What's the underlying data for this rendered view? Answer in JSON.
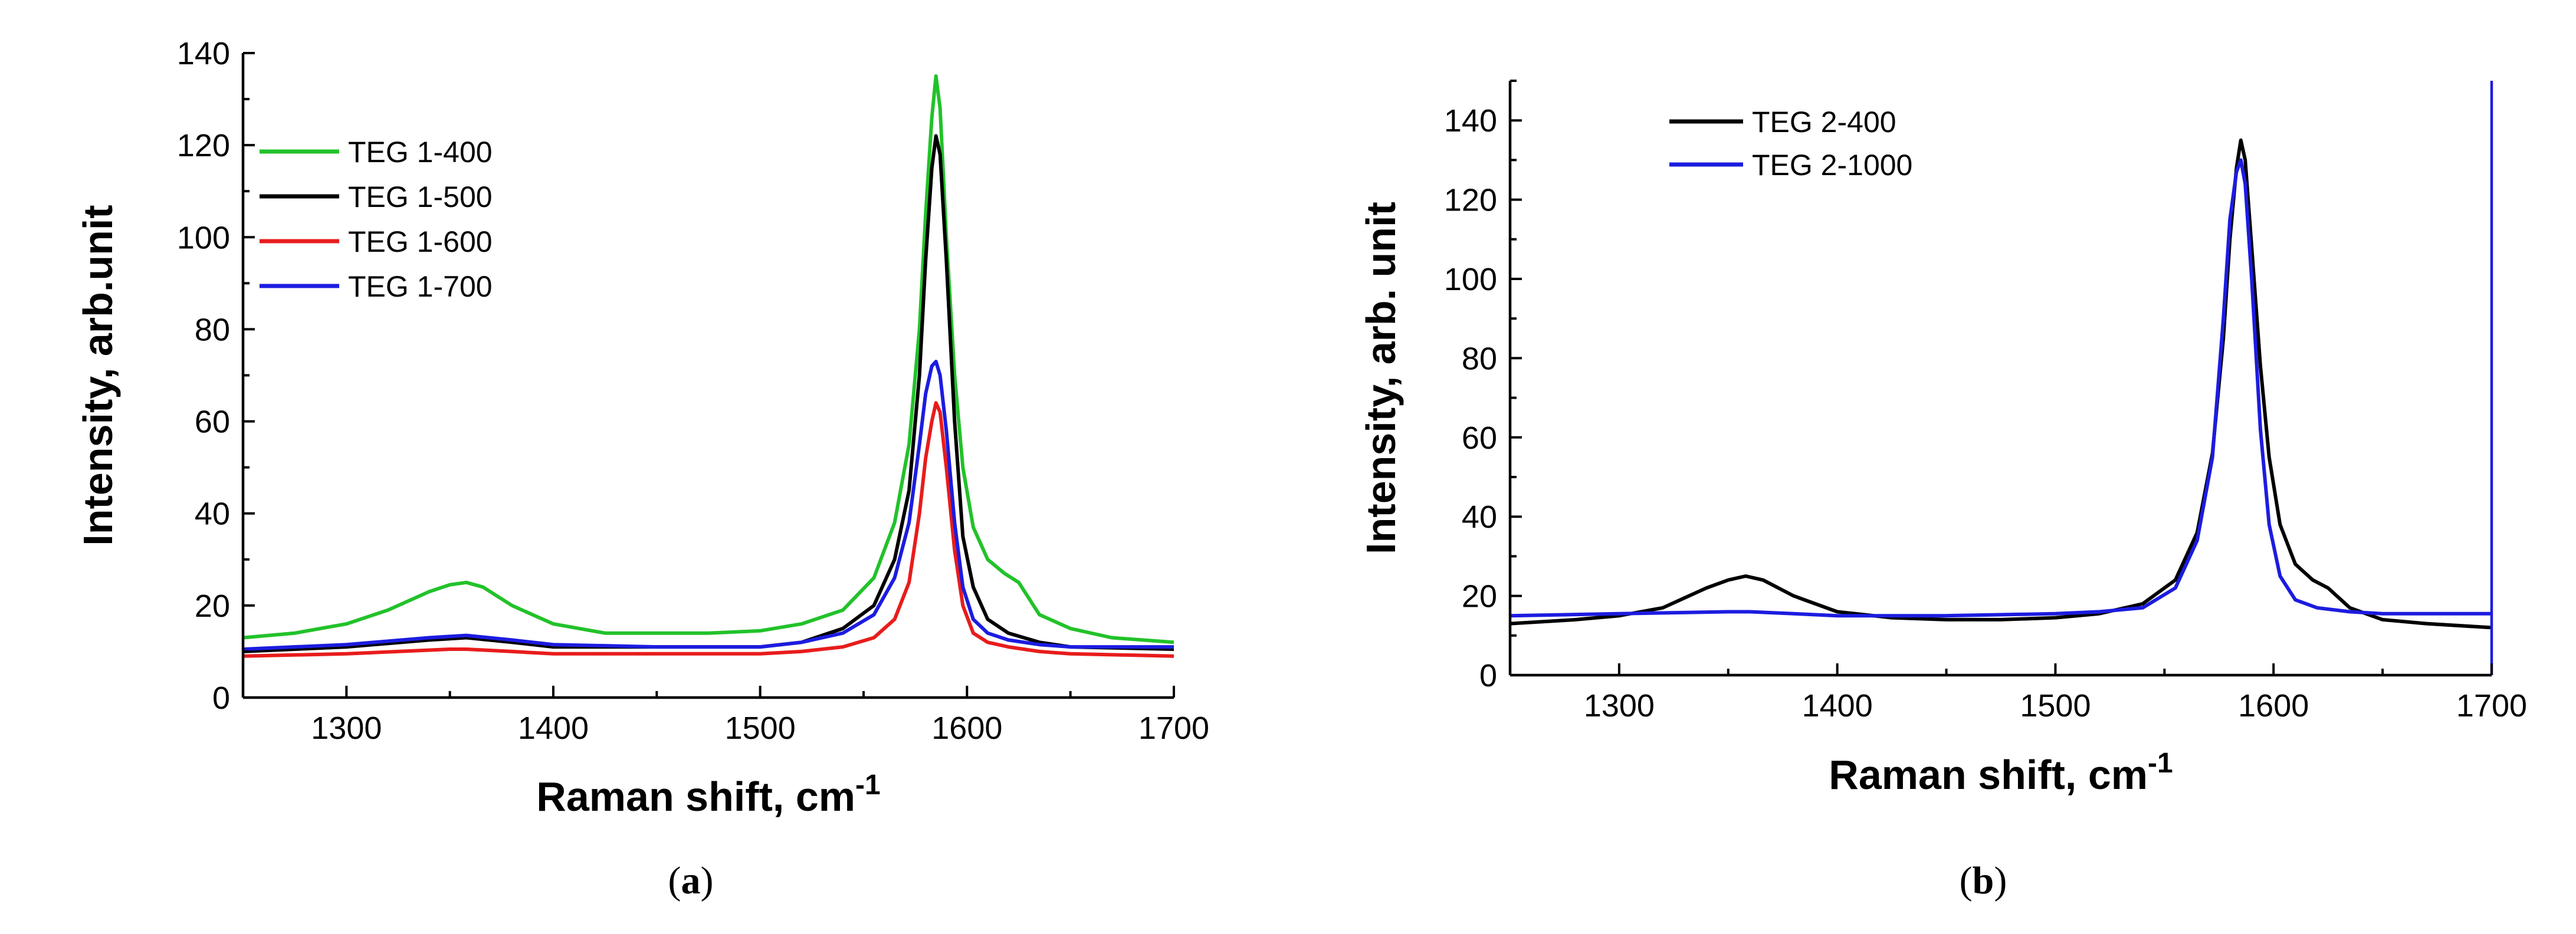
{
  "chart_data": [
    {
      "type": "line",
      "panel_label": "(a)",
      "panel_letter": "a",
      "xlabel": "Raman shift, cm",
      "xlabel_sup": "-1",
      "ylabel": "Intensity, arb.unit",
      "xlim": [
        1250,
        1700
      ],
      "ylim": [
        0,
        140
      ],
      "xticks": [
        1300,
        1400,
        1500,
        1600,
        1700
      ],
      "yticks": [
        0,
        20,
        40,
        60,
        80,
        100,
        120,
        140
      ],
      "legend_position": "top-left",
      "right_axis_color": "",
      "series": [
        {
          "name": "TEG 1-400",
          "color": "#22c22a",
          "x": [
            1250,
            1275,
            1300,
            1320,
            1340,
            1350,
            1358,
            1366,
            1380,
            1400,
            1425,
            1450,
            1475,
            1500,
            1520,
            1540,
            1555,
            1565,
            1572,
            1577,
            1580,
            1583,
            1585,
            1587,
            1590,
            1594,
            1598,
            1603,
            1610,
            1618,
            1625,
            1635,
            1650,
            1670,
            1700
          ],
          "y": [
            13,
            14,
            16,
            19,
            23,
            24.5,
            25,
            24,
            20,
            16,
            14,
            14,
            14,
            14.5,
            16,
            19,
            26,
            38,
            55,
            80,
            105,
            126,
            135,
            128,
            100,
            70,
            50,
            37,
            30,
            27,
            25,
            18,
            15,
            13,
            12
          ]
        },
        {
          "name": "TEG 1-500",
          "color": "#000000",
          "x": [
            1250,
            1300,
            1340,
            1358,
            1380,
            1400,
            1450,
            1500,
            1520,
            1540,
            1555,
            1565,
            1572,
            1577,
            1580,
            1583,
            1585,
            1587,
            1590,
            1594,
            1598,
            1603,
            1610,
            1620,
            1635,
            1650,
            1700
          ],
          "y": [
            10,
            11,
            12.5,
            13,
            12,
            11,
            11,
            11,
            12,
            15,
            20,
            30,
            45,
            70,
            95,
            115,
            122,
            118,
            95,
            60,
            35,
            24,
            17,
            14,
            12,
            11,
            10.5
          ]
        },
        {
          "name": "TEG 1-600",
          "color": "#e81c1c",
          "x": [
            1250,
            1300,
            1350,
            1358,
            1380,
            1400,
            1450,
            1500,
            1520,
            1540,
            1555,
            1565,
            1572,
            1577,
            1580,
            1583,
            1585,
            1587,
            1590,
            1594,
            1598,
            1603,
            1610,
            1620,
            1635,
            1650,
            1700
          ],
          "y": [
            9,
            9.5,
            10.5,
            10.5,
            10,
            9.5,
            9.5,
            9.5,
            10,
            11,
            13,
            17,
            25,
            40,
            52,
            60,
            64,
            62,
            50,
            32,
            20,
            14,
            12,
            11,
            10,
            9.5,
            9
          ]
        },
        {
          "name": "TEG 1-700",
          "color": "#1c1ce0",
          "x": [
            1250,
            1300,
            1340,
            1358,
            1380,
            1400,
            1450,
            1500,
            1520,
            1540,
            1555,
            1565,
            1572,
            1577,
            1580,
            1583,
            1585,
            1587,
            1590,
            1594,
            1598,
            1603,
            1610,
            1620,
            1635,
            1650,
            1700
          ],
          "y": [
            10.5,
            11.5,
            13,
            13.5,
            12.5,
            11.5,
            11,
            11,
            12,
            14,
            18,
            26,
            38,
            55,
            66,
            72,
            73,
            70,
            58,
            38,
            24,
            17,
            14,
            12.5,
            11.5,
            11,
            11
          ]
        }
      ]
    },
    {
      "type": "line",
      "panel_label": "(b)",
      "panel_letter": "b",
      "xlabel": "Raman shift, cm",
      "xlabel_sup": "-1",
      "ylabel": "Intensity, arb. unit",
      "xlim": [
        1250,
        1700
      ],
      "ylim": [
        0,
        150
      ],
      "xticks": [
        1300,
        1400,
        1500,
        1600,
        1700
      ],
      "yticks": [
        0,
        20,
        40,
        60,
        80,
        100,
        120,
        140
      ],
      "legend_position": "top-left",
      "right_axis_color": "#1c1ce0",
      "series": [
        {
          "name": "TEG 2-400",
          "color": "#000000",
          "x": [
            1250,
            1280,
            1300,
            1320,
            1340,
            1350,
            1358,
            1366,
            1380,
            1400,
            1425,
            1450,
            1475,
            1500,
            1520,
            1540,
            1555,
            1565,
            1572,
            1577,
            1580,
            1583,
            1585,
            1587,
            1590,
            1594,
            1598,
            1603,
            1610,
            1618,
            1625,
            1635,
            1650,
            1670,
            1700
          ],
          "y": [
            13,
            14,
            15,
            17,
            22,
            24,
            25,
            24,
            20,
            16,
            14.5,
            14,
            14,
            14.5,
            15.5,
            18,
            24,
            36,
            56,
            85,
            110,
            128,
            135,
            130,
            108,
            78,
            55,
            38,
            28,
            24,
            22,
            17,
            14,
            13,
            12
          ]
        },
        {
          "name": "TEG 2-1000",
          "color": "#1c1ce0",
          "x": [
            1250,
            1300,
            1350,
            1360,
            1380,
            1400,
            1450,
            1500,
            1520,
            1540,
            1555,
            1565,
            1572,
            1577,
            1580,
            1583,
            1585,
            1587,
            1590,
            1594,
            1598,
            1603,
            1610,
            1620,
            1635,
            1650,
            1700
          ],
          "y": [
            15,
            15.5,
            16,
            16,
            15.5,
            15,
            15,
            15.5,
            16,
            17,
            22,
            34,
            55,
            90,
            115,
            127,
            130,
            124,
            100,
            62,
            38,
            25,
            19,
            17,
            16,
            15.5,
            15.5
          ]
        }
      ]
    }
  ]
}
